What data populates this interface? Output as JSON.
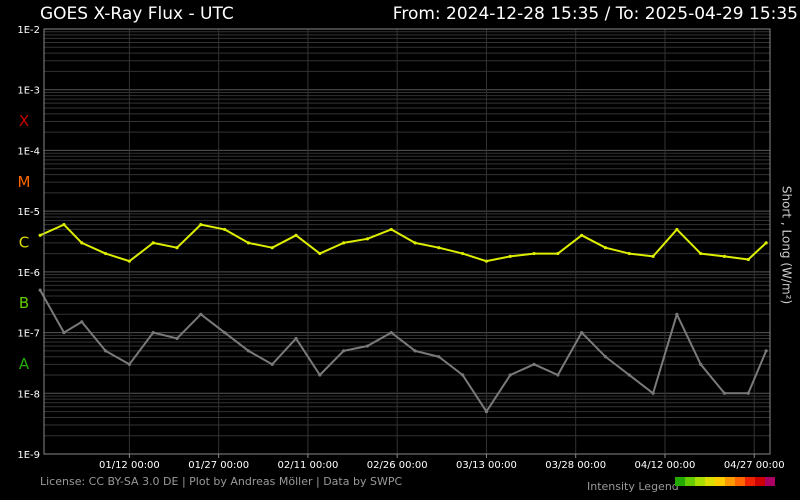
{
  "header": {
    "title": "GOES X-Ray Flux - UTC",
    "range": "From: 2024-12-28 15:35  /  To: 2025-04-29 15:35"
  },
  "footer": {
    "license": "License: CC BY-SA 3.0 DE | Plot by Andreas Möller | Data by SWPC",
    "legend_label": "Intensity Legend",
    "legend_colors": [
      "#22aa00",
      "#66cc00",
      "#aadd00",
      "#dddd00",
      "#ffcc00",
      "#ff9900",
      "#ff6600",
      "#ee2200",
      "#cc0000",
      "#aa0066"
    ]
  },
  "colors": {
    "background": "#000000",
    "grid": "#4a4a4a",
    "long_wave_base": "#ddee00",
    "long_wave_m": "#ff7700",
    "long_wave_x": "#cc0000",
    "short_wave": "#7a7a7a",
    "class_A": "#22aa00",
    "class_B": "#66cc00",
    "class_C": "#dddd00",
    "class_M": "#ff6600",
    "class_X": "#cc0000"
  },
  "chart_data": {
    "type": "line",
    "title": "GOES X-Ray Flux - UTC",
    "ylabel": "Short , Long (W/m²)",
    "yscale": "log",
    "ylim": [
      1e-09,
      0.01
    ],
    "y_ticks": [
      "1E-2",
      "1E-3",
      "1E-4",
      "1E-5",
      "1E-6",
      "1E-7",
      "1E-8",
      "1E-9"
    ],
    "flare_classes": [
      {
        "label": "X",
        "level": 0.0001
      },
      {
        "label": "M",
        "level": 1e-05
      },
      {
        "label": "C",
        "level": 1e-06
      },
      {
        "label": "B",
        "level": 1e-07
      },
      {
        "label": "A",
        "level": 1e-08
      }
    ],
    "x_range": [
      "2024-12-28 15:35",
      "2025-04-29 15:35"
    ],
    "x_ticks": [
      {
        "label": "01/12 00:00",
        "date": "2025-01-12"
      },
      {
        "label": "01/27 00:00",
        "date": "2025-01-27"
      },
      {
        "label": "02/11 00:00",
        "date": "2025-02-11"
      },
      {
        "label": "02/26 00:00",
        "date": "2025-02-26"
      },
      {
        "label": "03/13 00:00",
        "date": "2025-03-13"
      },
      {
        "label": "03/28 00:00",
        "date": "2025-03-28"
      },
      {
        "label": "04/12 00:00",
        "date": "2025-04-12"
      },
      {
        "label": "04/27 00:00",
        "date": "2025-04-27"
      }
    ],
    "grid": true,
    "series": [
      {
        "key": "long",
        "dates": [
          "2024-12-28",
          "2025-01-01",
          "2025-01-04",
          "2025-01-08",
          "2025-01-12",
          "2025-01-16",
          "2025-01-20",
          "2025-01-24",
          "2025-01-28",
          "2025-02-01",
          "2025-02-05",
          "2025-02-09",
          "2025-02-13",
          "2025-02-17",
          "2025-02-21",
          "2025-02-25",
          "2025-03-01",
          "2025-03-05",
          "2025-03-09",
          "2025-03-13",
          "2025-03-17",
          "2025-03-21",
          "2025-03-25",
          "2025-03-29",
          "2025-04-02",
          "2025-04-06",
          "2025-04-10",
          "2025-04-14",
          "2025-04-18",
          "2025-04-22",
          "2025-04-26",
          "2025-04-29"
        ],
        "values": [
          4e-06,
          6e-06,
          3e-06,
          2e-06,
          1.5e-06,
          3e-06,
          2.5e-06,
          6e-06,
          5e-06,
          3e-06,
          2.5e-06,
          4e-06,
          2e-06,
          3e-06,
          3.5e-06,
          5e-06,
          3e-06,
          2.5e-06,
          2e-06,
          1.5e-06,
          1.8e-06,
          2e-06,
          2e-06,
          4e-06,
          2.5e-06,
          2e-06,
          1.8e-06,
          5e-06,
          2e-06,
          1.8e-06,
          1.6e-06,
          3e-06
        ]
      },
      {
        "key": "short",
        "dates": [
          "2024-12-28",
          "2025-01-01",
          "2025-01-04",
          "2025-01-08",
          "2025-01-12",
          "2025-01-16",
          "2025-01-20",
          "2025-01-24",
          "2025-01-28",
          "2025-02-01",
          "2025-02-05",
          "2025-02-09",
          "2025-02-13",
          "2025-02-17",
          "2025-02-21",
          "2025-02-25",
          "2025-03-01",
          "2025-03-05",
          "2025-03-09",
          "2025-03-13",
          "2025-03-17",
          "2025-03-21",
          "2025-03-25",
          "2025-03-29",
          "2025-04-02",
          "2025-04-06",
          "2025-04-10",
          "2025-04-14",
          "2025-04-18",
          "2025-04-22",
          "2025-04-26",
          "2025-04-29"
        ],
        "values": [
          5e-07,
          1e-07,
          1.5e-07,
          5e-08,
          3e-08,
          1e-07,
          8e-08,
          2e-07,
          1e-07,
          5e-08,
          3e-08,
          8e-08,
          2e-08,
          5e-08,
          6e-08,
          1e-07,
          5e-08,
          4e-08,
          2e-08,
          5e-09,
          2e-08,
          3e-08,
          2e-08,
          1e-07,
          4e-08,
          2e-08,
          1e-08,
          2e-07,
          3e-08,
          1e-08,
          1e-08,
          5e-08
        ]
      }
    ]
  }
}
